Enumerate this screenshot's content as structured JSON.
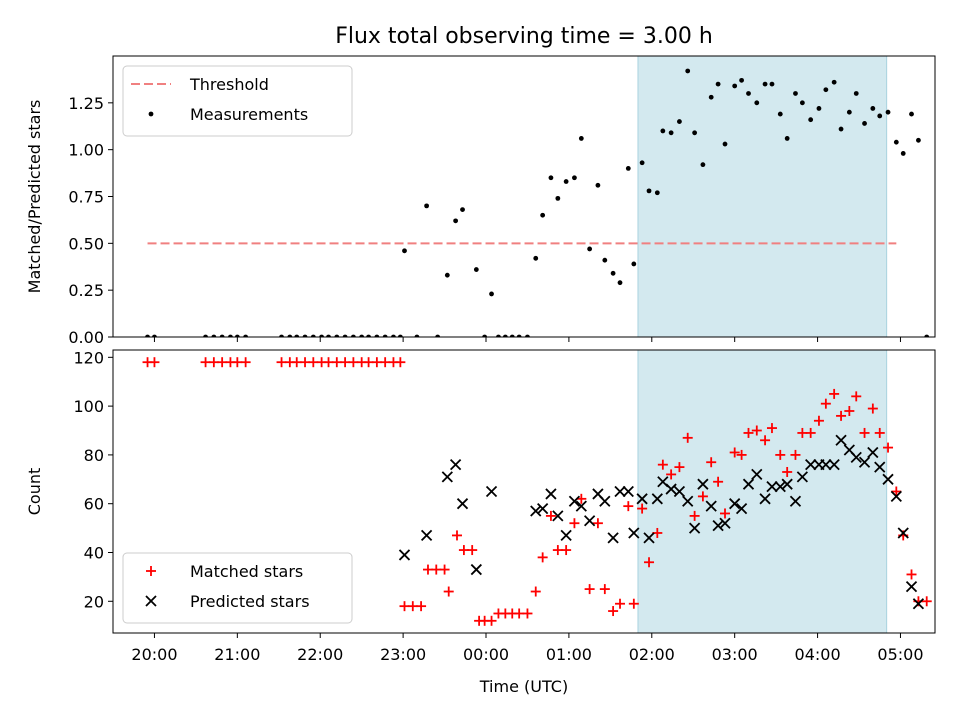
{
  "title": "Flux total observing time = 3.00 h",
  "chart_data": [
    {
      "type": "scatter",
      "title": "Flux total observing time = 3.00 h",
      "xlabel": "",
      "ylabel": "Matched/Predicted stars",
      "xlim": [
        "19:30",
        "05:25"
      ],
      "ylim": [
        0,
        1.5
      ],
      "yticks": [
        0.0,
        0.25,
        0.5,
        0.75,
        1.0,
        1.25
      ],
      "ytick_labels": [
        "0.00",
        "0.25",
        "0.50",
        "0.75",
        "1.00",
        "1.25"
      ],
      "legend_position": "upper left",
      "shaded_interval": {
        "start": "01:50",
        "end": "04:50",
        "color": "#d3e9ef"
      },
      "threshold": {
        "name": "Threshold",
        "value": 0.5,
        "x_start": "19:55",
        "x_end": "04:57",
        "color": "#f08080",
        "style": "dashed"
      },
      "series": [
        {
          "name": "Measurements",
          "color": "#000000",
          "marker": "dot",
          "points": [
            [
              "19:55",
              0
            ],
            [
              "20:00",
              0
            ],
            [
              "20:37",
              0
            ],
            [
              "20:43",
              0
            ],
            [
              "20:49",
              0
            ],
            [
              "20:55",
              0
            ],
            [
              "21:00",
              0
            ],
            [
              "21:06",
              0
            ],
            [
              "21:32",
              0
            ],
            [
              "21:38",
              0
            ],
            [
              "21:43",
              0
            ],
            [
              "21:49",
              0
            ],
            [
              "21:55",
              0
            ],
            [
              "22:01",
              0
            ],
            [
              "22:06",
              0
            ],
            [
              "22:12",
              0
            ],
            [
              "22:18",
              0
            ],
            [
              "22:24",
              0
            ],
            [
              "22:30",
              0
            ],
            [
              "22:35",
              0
            ],
            [
              "22:41",
              0
            ],
            [
              "22:47",
              0
            ],
            [
              "22:53",
              0
            ],
            [
              "22:58",
              0
            ],
            [
              "23:01",
              0.46
            ],
            [
              "23:10",
              0
            ],
            [
              "23:17",
              0.7
            ],
            [
              "23:25",
              0
            ],
            [
              "23:32",
              0.33
            ],
            [
              "23:38",
              0.62
            ],
            [
              "23:43",
              0.68
            ],
            [
              "23:53",
              0.36
            ],
            [
              "23:59",
              0
            ],
            [
              "00:04",
              0.23
            ],
            [
              "00:09",
              0
            ],
            [
              "00:14",
              0
            ],
            [
              "00:19",
              0
            ],
            [
              "00:24",
              0
            ],
            [
              "00:30",
              0
            ],
            [
              "00:36",
              0.42
            ],
            [
              "00:41",
              0.65
            ],
            [
              "00:47",
              0.85
            ],
            [
              "00:52",
              0.74
            ],
            [
              "00:58",
              0.83
            ],
            [
              "01:04",
              0.85
            ],
            [
              "01:09",
              1.06
            ],
            [
              "01:15",
              0.47
            ],
            [
              "01:21",
              0.81
            ],
            [
              "01:26",
              0.41
            ],
            [
              "01:32",
              0.34
            ],
            [
              "01:37",
              0.29
            ],
            [
              "01:43",
              0.9
            ],
            [
              "01:47",
              0.39
            ],
            [
              "01:53",
              0.93
            ],
            [
              "01:58",
              0.78
            ],
            [
              "02:04",
              0.77
            ],
            [
              "02:08",
              1.1
            ],
            [
              "02:14",
              1.09
            ],
            [
              "02:20",
              1.15
            ],
            [
              "02:26",
              1.42
            ],
            [
              "02:31",
              1.09
            ],
            [
              "02:37",
              0.92
            ],
            [
              "02:43",
              1.28
            ],
            [
              "02:48",
              1.35
            ],
            [
              "02:53",
              1.03
            ],
            [
              "03:00",
              1.34
            ],
            [
              "03:05",
              1.37
            ],
            [
              "03:10",
              1.3
            ],
            [
              "03:16",
              1.25
            ],
            [
              "03:22",
              1.35
            ],
            [
              "03:27",
              1.35
            ],
            [
              "03:33",
              1.19
            ],
            [
              "03:38",
              1.06
            ],
            [
              "03:44",
              1.3
            ],
            [
              "03:49",
              1.25
            ],
            [
              "03:55",
              1.16
            ],
            [
              "04:01",
              1.22
            ],
            [
              "04:06",
              1.32
            ],
            [
              "04:12",
              1.36
            ],
            [
              "04:17",
              1.11
            ],
            [
              "04:23",
              1.2
            ],
            [
              "04:28",
              1.3
            ],
            [
              "04:34",
              1.14
            ],
            [
              "04:40",
              1.22
            ],
            [
              "04:45",
              1.18
            ],
            [
              "04:51",
              1.2
            ],
            [
              "04:57",
              1.04
            ],
            [
              "05:02",
              0.98
            ],
            [
              "05:08",
              1.19
            ],
            [
              "05:13",
              1.05
            ],
            [
              "05:19",
              0
            ]
          ]
        }
      ]
    },
    {
      "type": "scatter",
      "title": "",
      "xlabel": "Time (UTC)",
      "ylabel": "Count",
      "xlim": [
        "19:30",
        "05:25"
      ],
      "ylim": [
        7,
        123
      ],
      "yticks": [
        20,
        40,
        60,
        80,
        100,
        120
      ],
      "ytick_labels": [
        "20",
        "40",
        "60",
        "80",
        "100",
        "120"
      ],
      "xticks": [
        "20:00",
        "21:00",
        "22:00",
        "23:00",
        "00:00",
        "01:00",
        "02:00",
        "03:00",
        "04:00",
        "05:00"
      ],
      "legend_position": "lower left",
      "shaded_interval": {
        "start": "01:50",
        "end": "04:50",
        "color": "#d3e9ef"
      },
      "series": [
        {
          "name": "Matched stars",
          "color": "#ff0000",
          "marker": "plus",
          "points": [
            [
              "19:55",
              118
            ],
            [
              "20:00",
              118
            ],
            [
              "20:37",
              118
            ],
            [
              "20:43",
              118
            ],
            [
              "20:49",
              118
            ],
            [
              "20:55",
              118
            ],
            [
              "21:00",
              118
            ],
            [
              "21:06",
              118
            ],
            [
              "21:32",
              118
            ],
            [
              "21:38",
              118
            ],
            [
              "21:43",
              118
            ],
            [
              "21:49",
              118
            ],
            [
              "21:55",
              118
            ],
            [
              "22:01",
              118
            ],
            [
              "22:06",
              118
            ],
            [
              "22:12",
              118
            ],
            [
              "22:18",
              118
            ],
            [
              "22:24",
              118
            ],
            [
              "22:30",
              118
            ],
            [
              "22:35",
              118
            ],
            [
              "22:41",
              118
            ],
            [
              "22:47",
              118
            ],
            [
              "22:53",
              118
            ],
            [
              "22:58",
              118
            ],
            [
              "23:01",
              18
            ],
            [
              "23:07",
              18
            ],
            [
              "23:13",
              18
            ],
            [
              "23:18",
              33
            ],
            [
              "23:24",
              33
            ],
            [
              "23:30",
              33
            ],
            [
              "23:33",
              24
            ],
            [
              "23:39",
              47
            ],
            [
              "23:44",
              41
            ],
            [
              "23:50",
              41
            ],
            [
              "23:55",
              12
            ],
            [
              "23:59",
              12
            ],
            [
              "00:04",
              12
            ],
            [
              "00:09",
              15
            ],
            [
              "00:14",
              15
            ],
            [
              "00:19",
              15
            ],
            [
              "00:24",
              15
            ],
            [
              "00:30",
              15
            ],
            [
              "00:36",
              24
            ],
            [
              "00:41",
              38
            ],
            [
              "00:47",
              55
            ],
            [
              "00:52",
              41
            ],
            [
              "00:58",
              41
            ],
            [
              "01:04",
              52
            ],
            [
              "01:09",
              62
            ],
            [
              "01:15",
              25
            ],
            [
              "01:21",
              52
            ],
            [
              "01:26",
              25
            ],
            [
              "01:32",
              16
            ],
            [
              "01:37",
              19
            ],
            [
              "01:43",
              59
            ],
            [
              "01:47",
              19
            ],
            [
              "01:53",
              58
            ],
            [
              "01:58",
              36
            ],
            [
              "02:04",
              48
            ],
            [
              "02:08",
              76
            ],
            [
              "02:14",
              72
            ],
            [
              "02:20",
              75
            ],
            [
              "02:26",
              87
            ],
            [
              "02:31",
              55
            ],
            [
              "02:37",
              63
            ],
            [
              "02:43",
              77
            ],
            [
              "02:48",
              69
            ],
            [
              "02:53",
              56
            ],
            [
              "03:00",
              81
            ],
            [
              "03:05",
              80
            ],
            [
              "03:10",
              89
            ],
            [
              "03:16",
              90
            ],
            [
              "03:22",
              86
            ],
            [
              "03:27",
              91
            ],
            [
              "03:33",
              80
            ],
            [
              "03:38",
              73
            ],
            [
              "03:44",
              80
            ],
            [
              "03:49",
              89
            ],
            [
              "03:55",
              89
            ],
            [
              "04:01",
              94
            ],
            [
              "04:06",
              101
            ],
            [
              "04:12",
              105
            ],
            [
              "04:17",
              96
            ],
            [
              "04:23",
              98
            ],
            [
              "04:28",
              104
            ],
            [
              "04:34",
              89
            ],
            [
              "04:40",
              99
            ],
            [
              "04:45",
              89
            ],
            [
              "04:51",
              83
            ],
            [
              "04:57",
              65
            ],
            [
              "05:02",
              47
            ],
            [
              "05:08",
              31
            ],
            [
              "05:13",
              20
            ],
            [
              "05:19",
              20
            ]
          ]
        },
        {
          "name": "Predicted stars",
          "color": "#000000",
          "marker": "x",
          "points": [
            [
              "23:01",
              39
            ],
            [
              "23:17",
              47
            ],
            [
              "23:32",
              71
            ],
            [
              "23:38",
              76
            ],
            [
              "23:43",
              60
            ],
            [
              "23:53",
              33
            ],
            [
              "00:04",
              65
            ],
            [
              "00:36",
              57
            ],
            [
              "00:41",
              58
            ],
            [
              "00:47",
              64
            ],
            [
              "00:52",
              55
            ],
            [
              "00:58",
              47
            ],
            [
              "01:04",
              61
            ],
            [
              "01:09",
              59
            ],
            [
              "01:15",
              53
            ],
            [
              "01:21",
              64
            ],
            [
              "01:26",
              61
            ],
            [
              "01:32",
              46
            ],
            [
              "01:37",
              65
            ],
            [
              "01:43",
              65
            ],
            [
              "01:47",
              48
            ],
            [
              "01:53",
              62
            ],
            [
              "01:58",
              46
            ],
            [
              "02:04",
              62
            ],
            [
              "02:08",
              69
            ],
            [
              "02:14",
              66
            ],
            [
              "02:20",
              65
            ],
            [
              "02:26",
              61
            ],
            [
              "02:31",
              50
            ],
            [
              "02:37",
              68
            ],
            [
              "02:43",
              59
            ],
            [
              "02:48",
              51
            ],
            [
              "02:53",
              52
            ],
            [
              "03:00",
              60
            ],
            [
              "03:05",
              58
            ],
            [
              "03:10",
              68
            ],
            [
              "03:16",
              72
            ],
            [
              "03:22",
              62
            ],
            [
              "03:27",
              67
            ],
            [
              "03:33",
              67
            ],
            [
              "03:38",
              68
            ],
            [
              "03:44",
              61
            ],
            [
              "03:49",
              71
            ],
            [
              "03:55",
              76
            ],
            [
              "04:01",
              76
            ],
            [
              "04:06",
              76
            ],
            [
              "04:12",
              76
            ],
            [
              "04:17",
              86
            ],
            [
              "04:23",
              82
            ],
            [
              "04:28",
              79
            ],
            [
              "04:34",
              77
            ],
            [
              "04:40",
              81
            ],
            [
              "04:45",
              75
            ],
            [
              "04:51",
              70
            ],
            [
              "04:57",
              63
            ],
            [
              "05:02",
              48
            ],
            [
              "05:08",
              26
            ],
            [
              "05:13",
              19
            ]
          ]
        }
      ]
    }
  ]
}
